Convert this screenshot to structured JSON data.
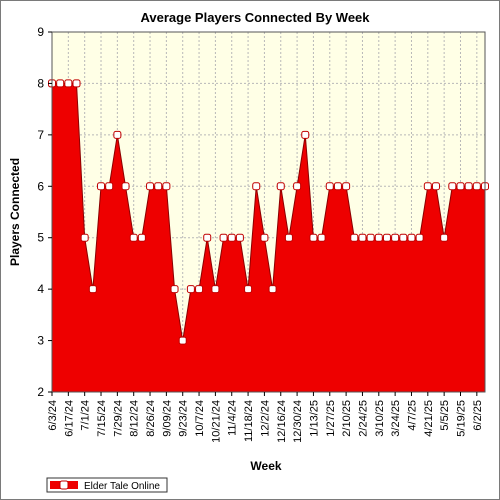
{
  "chart_data": {
    "type": "area",
    "title": "Average Players Connected By Week",
    "xlabel": "Week",
    "ylabel": "Players Connected",
    "ylim": [
      2,
      9
    ],
    "yticks": [
      2,
      3,
      4,
      5,
      6,
      7,
      8,
      9
    ],
    "grid": true,
    "legend_position": "bottom-left",
    "colors": {
      "plot_background": "#ffffe6",
      "grid": "#b8b8b8",
      "area_fill": "#ee0000",
      "line": "#8b0000",
      "marker_fill": "#ffffff",
      "marker_stroke": "#c00000"
    },
    "x_tick_labels": [
      "6/3/24",
      "6/17/24",
      "7/1/24",
      "7/15/24",
      "7/29/24",
      "8/12/24",
      "8/26/24",
      "9/09/24",
      "9/23/24",
      "10/7/24",
      "10/21/24",
      "11/4/24",
      "11/18/24",
      "12/2/24",
      "12/16/24",
      "12/30/24",
      "1/13/25",
      "1/27/25",
      "2/10/25",
      "2/24/25",
      "3/10/25",
      "3/24/25",
      "4/7/25",
      "4/21/25",
      "5/5/25",
      "5/19/25",
      "6/2/25"
    ],
    "series": [
      {
        "name": "Elder Tale Online",
        "x": [
          "6/3/24",
          "6/10/24",
          "6/17/24",
          "6/24/24",
          "7/1/24",
          "7/8/24",
          "7/15/24",
          "7/22/24",
          "7/29/24",
          "8/5/24",
          "8/12/24",
          "8/19/24",
          "8/26/24",
          "9/2/24",
          "9/09/24",
          "9/16/24",
          "9/23/24",
          "9/30/24",
          "10/7/24",
          "10/14/24",
          "10/21/24",
          "10/28/24",
          "11/4/24",
          "11/11/24",
          "11/18/24",
          "11/25/24",
          "12/2/24",
          "12/9/24",
          "12/16/24",
          "12/23/24",
          "12/30/24",
          "1/6/25",
          "1/13/25",
          "1/20/25",
          "1/27/25",
          "2/3/25",
          "2/10/25",
          "2/17/25",
          "2/24/25",
          "3/3/25",
          "3/10/25",
          "3/17/25",
          "3/24/25",
          "3/31/25",
          "4/7/25",
          "4/14/25",
          "4/21/25",
          "4/28/25",
          "5/5/25",
          "5/12/25",
          "5/19/25",
          "5/26/25",
          "6/2/25",
          "6/9/25"
        ],
        "values": [
          8,
          8,
          8,
          8,
          5,
          4,
          6,
          6,
          7,
          6,
          5,
          5,
          6,
          6,
          6,
          4,
          3,
          4,
          4,
          5,
          4,
          5,
          5,
          5,
          4,
          6,
          5,
          4,
          6,
          5,
          6,
          7,
          5,
          5,
          6,
          6,
          6,
          5,
          5,
          5,
          5,
          5,
          5,
          5,
          5,
          5,
          6,
          6,
          5,
          6,
          6,
          6,
          6,
          6
        ]
      }
    ]
  }
}
